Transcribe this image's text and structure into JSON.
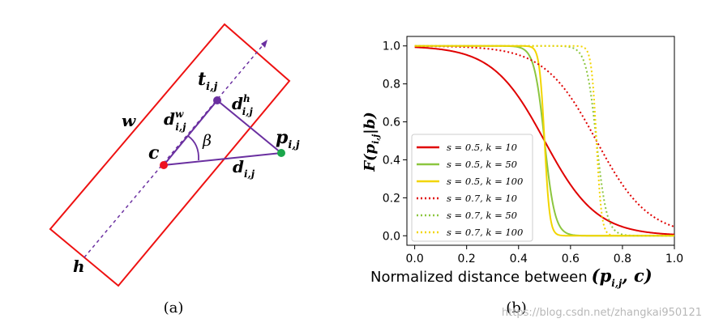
{
  "panel_a": {
    "caption": "(a)",
    "labels": {
      "w": "w",
      "h": "h",
      "c": "c",
      "t": "t",
      "t_sub": "i,j",
      "p": "p",
      "p_sub": "i,j",
      "d_w": "d",
      "d_w_sup": "w",
      "d_w_sub": "i,j",
      "d_h": "d",
      "d_h_sup": "h",
      "d_h_sub": "i,j",
      "d": "d",
      "d_sub": "i,j",
      "beta": "β"
    },
    "colors": {
      "box": "#ee1111",
      "segment": "#6a2fa0",
      "point_c": "#ee1122",
      "point_t": "#6a2fa0",
      "point_p": "#1aa64b"
    }
  },
  "panel_b": {
    "caption": "(b)",
    "watermark": "https://blog.csdn.net/zhangkai950121",
    "chart_data": {
      "type": "line",
      "xlabel": "Normalized distance between (p_{i,j}, c)",
      "xlabel_text": "Normalized distance between",
      "xlabel_math": "(p",
      "xlabel_sub": "i,j",
      "xlabel_tail": ", c)",
      "ylabel": "F(p_{i,j}|b)",
      "ylabel_pre": "F(p",
      "ylabel_sub": "i,j",
      "ylabel_post": "|b)",
      "xlim": [
        -0.03,
        1.0
      ],
      "ylim": [
        -0.05,
        1.05
      ],
      "xticks": [
        "0.0",
        "0.2",
        "0.4",
        "0.6",
        "0.8",
        "1.0"
      ],
      "yticks": [
        "0.0",
        "0.2",
        "0.4",
        "0.6",
        "0.8",
        "1.0"
      ],
      "grid": false,
      "legend_position": "lower-left",
      "series": [
        {
          "name": "s = 0.5, k = 10",
          "s": 0.5,
          "k": 10,
          "color": "#e00000",
          "style": "solid"
        },
        {
          "name": "s = 0.5, k = 50",
          "s": 0.5,
          "k": 50,
          "color": "#8cc63f",
          "style": "solid"
        },
        {
          "name": "s = 0.5, k = 100",
          "s": 0.5,
          "k": 100,
          "color": "#f2d500",
          "style": "solid"
        },
        {
          "name": "s = 0.7, k = 10",
          "s": 0.7,
          "k": 10,
          "color": "#e00000",
          "style": "dotted"
        },
        {
          "name": "s = 0.7, k = 50",
          "s": 0.7,
          "k": 50,
          "color": "#8cc63f",
          "style": "dotted"
        },
        {
          "name": "s = 0.7, k = 100",
          "s": 0.7,
          "k": 100,
          "color": "#f2d500",
          "style": "dotted"
        }
      ]
    }
  }
}
